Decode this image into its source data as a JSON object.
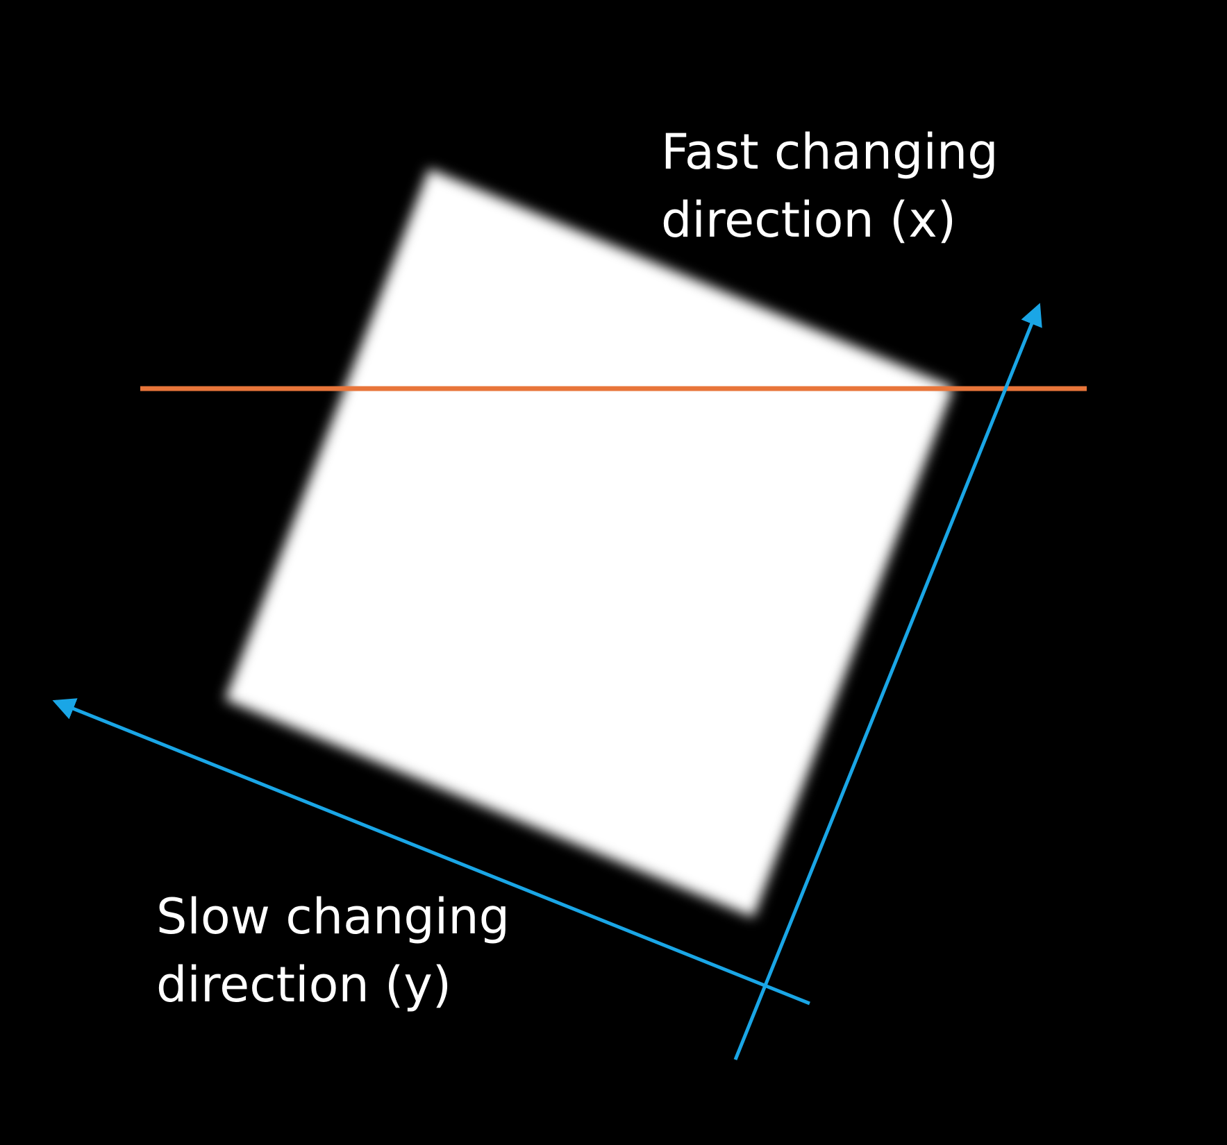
{
  "colors": {
    "background": "#000000",
    "square": "#ffffff",
    "scan_line": "#e8753a",
    "arrows": "#1aa6e6",
    "text": "#ffffff"
  },
  "labels": {
    "fast_line1": "Fast changing",
    "fast_line2": "direction (x)",
    "slow_line1": "Slow changing",
    "slow_line2": "direction (y)"
  }
}
